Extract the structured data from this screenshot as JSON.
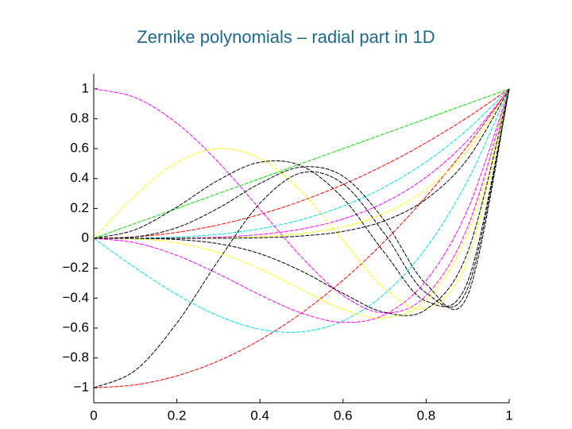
{
  "chart_data": {
    "type": "line",
    "title": "Zernike polynomials – radial part in 1D",
    "x": [
      0,
      0.1,
      0.2,
      0.3,
      0.4,
      0.5,
      0.6,
      0.7,
      0.8,
      0.9,
      1
    ],
    "xlim": [
      0,
      1
    ],
    "xticks": [
      0,
      0.2,
      0.4,
      0.6,
      0.8,
      1
    ],
    "ylim": [
      -1.1,
      1.1
    ],
    "yticks": [
      {
        "value": -1,
        "label": "−1"
      },
      {
        "value": -0.8,
        "label": "−0.8"
      },
      {
        "value": -0.6,
        "label": "−0.6"
      },
      {
        "value": -0.4,
        "label": "−0.4"
      },
      {
        "value": -0.2,
        "label": "−0.2"
      },
      0,
      0.2,
      0.4,
      0.6,
      0.8,
      1
    ],
    "grid": false,
    "series": [
      {
        "color": "#00e000",
        "values": [
          0,
          0.1,
          0.2,
          0.3,
          0.4,
          0.5,
          0.6,
          0.7,
          0.8,
          0.9,
          1
        ]
      },
      {
        "color": "#ff0000",
        "values": [
          -1,
          -0.98,
          -0.92,
          -0.82,
          -0.68,
          -0.5,
          -0.28,
          -0.02,
          0.28,
          0.62,
          1
        ]
      },
      {
        "color": "#ff0000",
        "values": [
          0,
          0.01,
          0.04,
          0.09,
          0.16,
          0.25,
          0.36,
          0.49,
          0.64,
          0.81,
          1
        ]
      },
      {
        "color": "#00e0e0",
        "values": [
          0,
          -0.197,
          -0.376,
          -0.519,
          -0.608,
          -0.625,
          -0.552,
          -0.371,
          -0.064,
          0.387,
          1
        ]
      },
      {
        "color": "#00e0e0",
        "values": [
          0,
          0.001,
          0.008,
          0.027,
          0.064,
          0.125,
          0.216,
          0.343,
          0.512,
          0.729,
          1
        ]
      },
      {
        "color": "#ff00ff",
        "values": [
          1,
          0.941,
          0.77,
          0.509,
          0.194,
          -0.125,
          -0.382,
          -0.499,
          -0.382,
          0.077,
          1
        ]
      },
      {
        "color": "#ff00ff",
        "values": [
          0,
          -0.03,
          -0.114,
          -0.238,
          -0.378,
          -0.5,
          -0.562,
          -0.51,
          -0.282,
          0.194,
          1
        ]
      },
      {
        "color": "#ff00ff",
        "values": [
          0,
          0.0001,
          0.0016,
          0.0081,
          0.0256,
          0.0625,
          0.1296,
          0.2401,
          0.4096,
          0.6561,
          1
        ]
      },
      {
        "color": "#ffff00",
        "values": [
          0,
          0.288,
          0.507,
          0.6,
          0.534,
          0.313,
          -0.014,
          -0.335,
          -0.467,
          -0.143,
          1
        ]
      },
      {
        "color": "#ffff00",
        "values": [
          0,
          -0.004,
          -0.03,
          -0.096,
          -0.205,
          -0.344,
          -0.475,
          -0.532,
          -0.41,
          0.036,
          1
        ]
      },
      {
        "color": "#ffff00",
        "values": [
          0,
          1e-05,
          0.00032,
          0.00243,
          0.01024,
          0.03125,
          0.07776,
          0.16807,
          0.32768,
          0.59049,
          1
        ]
      },
      {
        "color": "#000000",
        "values": [
          -1,
          -0.883,
          -0.567,
          -0.148,
          0.234,
          0.438,
          0.365,
          0.03,
          -0.365,
          -0.334,
          1
        ]
      },
      {
        "color": "#000000",
        "values": [
          0,
          0.058,
          0.209,
          0.389,
          0.509,
          0.484,
          0.268,
          -0.097,
          -0.42,
          -0.29,
          1
        ]
      },
      {
        "color": "#000000",
        "values": [
          0,
          0.0097,
          0.071,
          0.202,
          0.367,
          0.477,
          0.415,
          0.117,
          -0.306,
          -0.381,
          1
        ]
      },
      {
        "color": "#000000",
        "values": [
          0,
          -0.0005,
          -0.008,
          -0.036,
          -0.103,
          -0.219,
          -0.368,
          -0.495,
          -0.475,
          -0.092,
          1
        ]
      },
      {
        "color": "#000000",
        "values": [
          0,
          1e-06,
          6.4e-05,
          0.000729,
          0.004096,
          0.015625,
          0.046656,
          0.117649,
          0.262144,
          0.531441,
          1
        ]
      }
    ]
  }
}
